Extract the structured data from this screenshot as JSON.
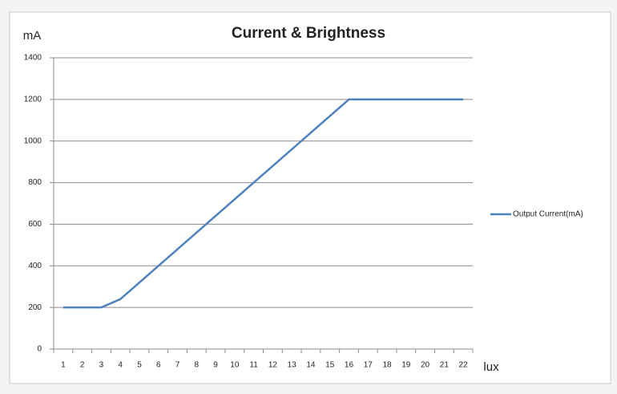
{
  "chart_data": {
    "type": "line",
    "title": "Current  & Brightness",
    "y_label": "mA",
    "x_label": "lux",
    "categories": [
      1,
      2,
      3,
      4,
      5,
      6,
      7,
      8,
      9,
      10,
      11,
      12,
      13,
      14,
      15,
      16,
      17,
      18,
      19,
      20,
      21,
      22
    ],
    "series": [
      {
        "name": "Output Current(mA)",
        "color": "#4f81bd",
        "values": [
          200,
          200,
          200,
          240,
          320,
          400,
          480,
          560,
          640,
          720,
          800,
          880,
          960,
          1040,
          1120,
          1200,
          1200,
          1200,
          1200,
          1200,
          1200,
          1200
        ]
      }
    ],
    "ylim": [
      0,
      1400
    ],
    "yticks": [
      0,
      200,
      400,
      600,
      800,
      1000,
      1200,
      1400
    ],
    "grid": true,
    "legend": "right"
  }
}
